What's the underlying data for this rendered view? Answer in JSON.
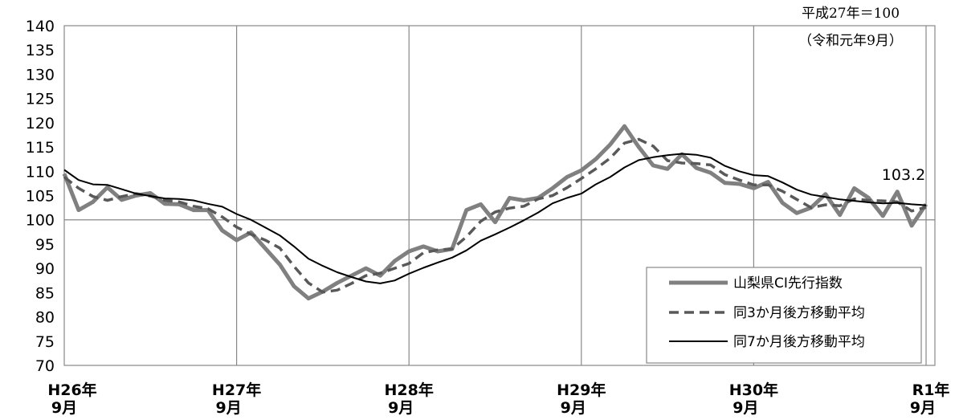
{
  "chart_data": {
    "type": "line",
    "title": "",
    "xlabel": "",
    "ylabel": "",
    "note_lines": [
      "平成27年＝100",
      "（令和元年9月）"
    ],
    "ylim": [
      70,
      140
    ],
    "yticks": [
      70,
      75,
      80,
      85,
      90,
      95,
      100,
      105,
      110,
      115,
      120,
      125,
      130,
      135,
      140
    ],
    "reference_line": 100,
    "grid": "vertical-at-labeled-months",
    "x_ticks": [
      {
        "line1": "H26年",
        "line2": "9月",
        "index": 0
      },
      {
        "line1": "H27年",
        "line2": "9月",
        "index": 12
      },
      {
        "line1": "H28年",
        "line2": "9月",
        "index": 24
      },
      {
        "line1": "H29年",
        "line2": "9月",
        "index": 36
      },
      {
        "line1": "H30年",
        "line2": "9月",
        "index": 48
      },
      {
        "line1": "R1年",
        "line2": "9月",
        "index": 60
      }
    ],
    "legend_position": "bottom-right",
    "annotation": {
      "text": "103.2",
      "index": 60
    },
    "series": [
      {
        "name": "山梨県CI先行指数",
        "color": "#808080",
        "style": "solid-thick",
        "values": [
          109.5,
          102.0,
          103.7,
          106.7,
          104.1,
          105.0,
          105.5,
          103.3,
          103.2,
          102.0,
          102.0,
          97.8,
          95.8,
          97.4,
          94.1,
          90.8,
          86.3,
          83.8,
          85.2,
          87.0,
          88.5,
          90.0,
          88.5,
          91.5,
          93.5,
          94.5,
          93.5,
          94.0,
          102.0,
          103.2,
          99.5,
          104.5,
          104.0,
          104.5,
          106.5,
          108.8,
          110.2,
          112.5,
          115.5,
          119.3,
          115.0,
          111.2,
          110.5,
          113.5,
          110.7,
          109.7,
          107.6,
          107.4,
          106.5,
          107.8,
          103.5,
          101.4,
          102.5,
          105.3,
          101.0,
          106.5,
          104.5,
          100.8,
          105.8,
          98.8,
          103.2
        ]
      },
      {
        "name": "同3か月後方移動平均",
        "color": "#595959",
        "style": "dashed",
        "values": [
          108.8,
          106.5,
          104.8,
          104.0,
          104.8,
          105.4,
          104.9,
          104.0,
          103.7,
          102.8,
          102.3,
          100.6,
          98.5,
          97.0,
          95.8,
          94.2,
          90.4,
          87.0,
          85.1,
          85.5,
          86.9,
          88.5,
          89.0,
          90.0,
          91.0,
          93.2,
          93.8,
          94.0,
          96.5,
          99.7,
          101.6,
          102.4,
          102.8,
          104.3,
          105.0,
          106.6,
          108.5,
          110.5,
          112.7,
          115.8,
          116.6,
          115.2,
          112.2,
          111.7,
          111.6,
          111.3,
          109.3,
          108.2,
          107.2,
          107.2,
          105.9,
          104.2,
          102.5,
          103.1,
          102.9,
          104.3,
          104.0,
          103.9,
          103.7,
          101.8,
          102.6
        ]
      },
      {
        "name": "同7か月後方移動平均",
        "color": "#000000",
        "style": "solid",
        "values": [
          110.3,
          108.2,
          107.3,
          107.2,
          106.3,
          105.4,
          104.9,
          104.4,
          104.3,
          104.0,
          103.3,
          102.7,
          101.2,
          100.0,
          98.4,
          96.8,
          94.5,
          92.0,
          90.5,
          89.2,
          88.2,
          87.3,
          86.9,
          87.5,
          88.9,
          90.1,
          91.2,
          92.2,
          93.7,
          95.7,
          97.0,
          98.4,
          99.9,
          101.5,
          103.4,
          104.5,
          105.4,
          107.3,
          108.8,
          110.8,
          112.3,
          112.9,
          113.3,
          113.6,
          113.4,
          112.8,
          111.1,
          110.0,
          109.2,
          109.0,
          107.7,
          106.2,
          105.2,
          104.7,
          104.2,
          103.9,
          103.6,
          103.4,
          103.5,
          103.2,
          103.0
        ]
      }
    ]
  }
}
